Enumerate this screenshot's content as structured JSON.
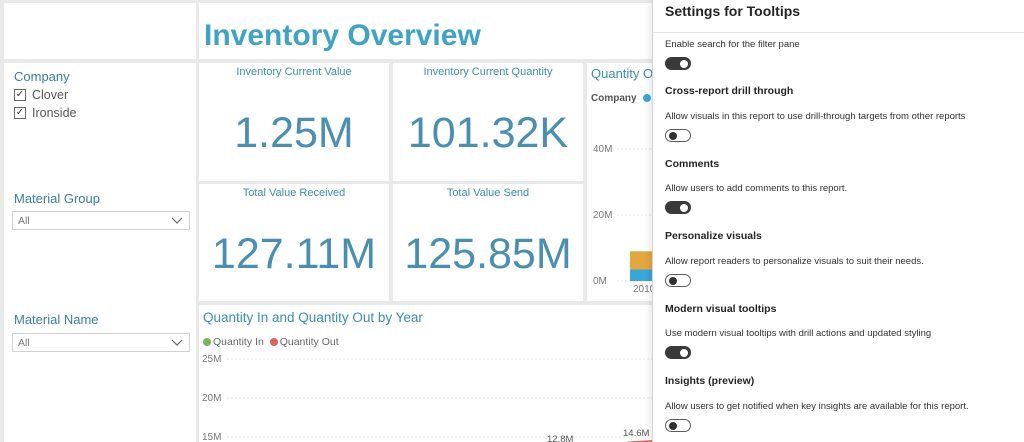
{
  "report": {
    "title": "Inventory Overview"
  },
  "filters": {
    "company": {
      "title": "Company",
      "options": [
        {
          "label": "Clover",
          "checked": true
        },
        {
          "label": "Ironside",
          "checked": true
        }
      ]
    },
    "material_group": {
      "title": "Material Group",
      "value": "All"
    },
    "material_name": {
      "title": "Material Name",
      "value": "All"
    }
  },
  "kpis": [
    {
      "label": "Inventory Current Value",
      "value": "1.25M"
    },
    {
      "label": "Inventory Current Quantity",
      "value": "101.32K"
    },
    {
      "label": "Total Value Received",
      "value": "127.11M"
    },
    {
      "label": "Total Value Send",
      "value": "125.85M"
    }
  ],
  "colors": {
    "accent": "#3fa3c1",
    "quantity_in": "#7cb15b",
    "quantity_out": "#d9625d",
    "company_a": "#e3a73f",
    "company_b": "#3aa6d8",
    "toggle_on": "#3b3a39"
  },
  "chart_data": [
    {
      "type": "bar",
      "title": "Quantity O",
      "legend_title": "Company",
      "legend_placement": "top-left",
      "yticks": [
        "40M",
        "20M",
        "0M"
      ],
      "categories": [
        "2010"
      ],
      "ylim": [
        0,
        40000000
      ],
      "series": [
        {
          "values": [
            5500000
          ]
        },
        {
          "values": [
            3500000
          ]
        }
      ]
    },
    {
      "type": "line",
      "title": "Quantity In and Quantity Out by Year",
      "legend_placement": "top-left",
      "yticks": [
        "25M",
        "20M",
        "15M"
      ],
      "ylim": [
        13000000,
        25000000
      ],
      "data_labels": [
        "12.8M",
        "14.6M"
      ],
      "series": [
        {
          "name": "Quantity In"
        },
        {
          "name": "Quantity Out"
        }
      ]
    }
  ],
  "settings_panel": {
    "title": "Settings for Tooltips",
    "items": [
      {
        "heading": "",
        "description": "Enable search for the filter pane",
        "on": true
      },
      {
        "heading": "Cross-report drill through",
        "description": "Allow visuals in this report to use drill-through targets from other reports",
        "on": false
      },
      {
        "heading": "Comments",
        "description": "Allow users to add comments to this report.",
        "on": true
      },
      {
        "heading": "Personalize visuals",
        "description": "Allow report readers to personalize visuals to suit their needs.",
        "on": false
      },
      {
        "heading": "Modern visual tooltips",
        "description": "Use modern visual tooltips with drill actions and updated styling",
        "on": true
      },
      {
        "heading": "Insights (preview)",
        "description": "Allow users to get notified when key insights are available for this report.",
        "on": false
      }
    ]
  }
}
